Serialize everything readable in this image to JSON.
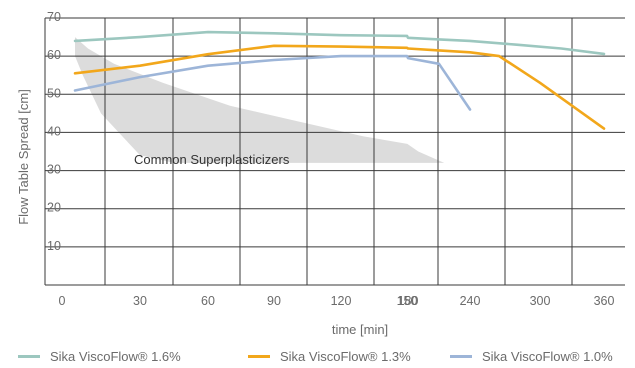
{
  "chart_data": {
    "type": "line",
    "xlabel": "time [min]",
    "ylabel": "Flow Table Spread [cm]",
    "xlim": [
      0,
      375
    ],
    "ylim": [
      0,
      70
    ],
    "x_ticks": [
      "0",
      "30",
      "60",
      "90",
      "120",
      "150",
      "180",
      "240",
      "300",
      "360"
    ],
    "y_ticks": [
      "10",
      "20",
      "30",
      "40",
      "50",
      "60",
      "70"
    ],
    "grid": true,
    "legend_position": "bottom",
    "series": [
      {
        "name": "Sika ViscoFlow® 1.6%",
        "color": "#9cc7bf",
        "x": [
          5,
          30,
          60,
          90,
          120,
          150,
          180,
          210,
          240,
          280,
          320,
          360
        ],
        "y": [
          64,
          65,
          66.3,
          66,
          65.5,
          65.3,
          64.8,
          64.4,
          64,
          63,
          62,
          60.6
        ]
      },
      {
        "name": "Sika ViscoFlow® 1.3%",
        "color": "#f2a71b",
        "x": [
          5,
          30,
          60,
          90,
          120,
          150,
          180,
          210,
          240,
          265,
          300,
          330,
          360
        ],
        "y": [
          55.5,
          57.5,
          60.5,
          62.7,
          62.5,
          62.2,
          62,
          61.5,
          61,
          60,
          53,
          47,
          41
        ]
      },
      {
        "name": "Sika ViscoFlow® 1.0%",
        "color": "#9db5d8",
        "x": [
          5,
          30,
          60,
          90,
          120,
          150,
          180,
          210,
          240
        ],
        "y": [
          51,
          54.5,
          57.5,
          59,
          60,
          60,
          59.5,
          58,
          46
        ]
      }
    ],
    "annotations": [
      {
        "text": "Common Superplasticizers",
        "color": "#dcdcdc",
        "band_x": [
          5,
          10,
          20,
          40,
          70,
          100,
          130,
          160,
          190,
          215,
          180,
          140,
          100,
          70,
          45,
          30,
          15,
          8,
          5
        ],
        "band_y": [
          65,
          62,
          58,
          53,
          47,
          43,
          39,
          37,
          35,
          32,
          32,
          32,
          32,
          32,
          32,
          34,
          45,
          55,
          60
        ]
      }
    ]
  }
}
